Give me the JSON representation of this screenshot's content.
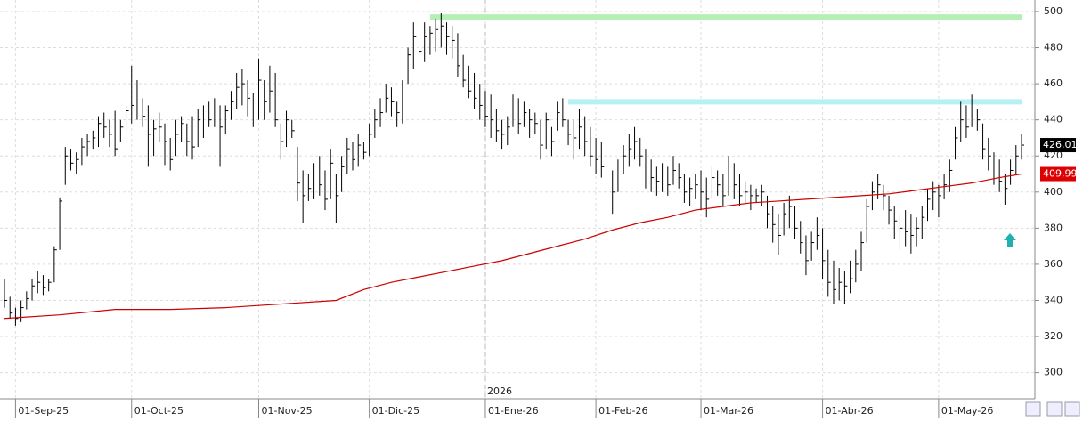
{
  "chart_data": {
    "type": "ohlc",
    "ylim": [
      286,
      506.4
    ],
    "yticks": [
      300,
      320,
      340,
      360,
      380,
      400,
      420,
      440,
      460,
      480,
      500
    ],
    "grid": true,
    "categories": [
      null,
      null,
      "01-Sep-25",
      null,
      null,
      null,
      null,
      null,
      null,
      null,
      null,
      null,
      null,
      null,
      null,
      null,
      null,
      null,
      null,
      null,
      null,
      null,
      null,
      "01-Oct-25",
      null,
      null,
      null,
      null,
      null,
      null,
      null,
      null,
      null,
      null,
      null,
      null,
      null,
      null,
      null,
      null,
      null,
      null,
      null,
      null,
      null,
      null,
      "01-Nov-25",
      null,
      null,
      null,
      null,
      null,
      null,
      null,
      null,
      null,
      null,
      null,
      null,
      null,
      null,
      null,
      null,
      null,
      null,
      null,
      "01-Dic-25",
      null,
      null,
      null,
      null,
      null,
      null,
      null,
      null,
      null,
      null,
      null,
      null,
      null,
      null,
      null,
      null,
      null,
      null,
      null,
      null,
      "01-Ene-26",
      null,
      null,
      null,
      null,
      null,
      null,
      null,
      null,
      null,
      null,
      null,
      null,
      null,
      null,
      null,
      null,
      null,
      null,
      null,
      "01-Feb-26",
      null,
      null,
      null,
      null,
      null,
      null,
      null,
      null,
      null,
      null,
      null,
      null,
      null,
      null,
      null,
      null,
      null,
      null,
      "01-Mar-26",
      null,
      null,
      null,
      null,
      null,
      null,
      null,
      null,
      null,
      null,
      null,
      null,
      null,
      null,
      null,
      null,
      null,
      null,
      null,
      null,
      null,
      "01-Abr-26",
      null,
      null,
      null,
      null,
      null,
      null,
      null,
      null,
      null,
      null,
      null,
      null,
      null,
      null,
      null,
      null,
      null,
      null,
      null,
      null,
      "01-May-26",
      null,
      null,
      null,
      null,
      null,
      null,
      null,
      null,
      null,
      null,
      null,
      null,
      null,
      null,
      null
    ],
    "year_divider": {
      "label": "2026",
      "at": 87
    },
    "bars": {
      "color": "#000000",
      "high": [
        352,
        342,
        336,
        340,
        345,
        352,
        356,
        354,
        352,
        370,
        397,
        425,
        424,
        422,
        430,
        432,
        434,
        442,
        444,
        440,
        445,
        440,
        448,
        470,
        462,
        452,
        448,
        440,
        444,
        438,
        430,
        440,
        442,
        438,
        442,
        446,
        448,
        450,
        452,
        448,
        448,
        456,
        466,
        468,
        462,
        455,
        474,
        462,
        470,
        466,
        438,
        445,
        440,
        425,
        412,
        410,
        416,
        420,
        412,
        424,
        410,
        420,
        430,
        428,
        432,
        428,
        438,
        446,
        452,
        460,
        458,
        450,
        462,
        480,
        494,
        488,
        494,
        492,
        496,
        499,
        494,
        492,
        488,
        476,
        470,
        466,
        460,
        456,
        454,
        446,
        440,
        442,
        454,
        452,
        450,
        446,
        444,
        440,
        444,
        436,
        450,
        452,
        440,
        440,
        446,
        442,
        436,
        430,
        428,
        425,
        412,
        418,
        426,
        432,
        436,
        430,
        424,
        418,
        414,
        416,
        414,
        420,
        416,
        410,
        408,
        410,
        412,
        408,
        414,
        412,
        410,
        420,
        416,
        410,
        406,
        404,
        402,
        404,
        398,
        392,
        388,
        394,
        398,
        392,
        384,
        376,
        378,
        386,
        380,
        368,
        362,
        358,
        356,
        362,
        368,
        378,
        396,
        406,
        410,
        404,
        398,
        392,
        388,
        390,
        388,
        386,
        392,
        402,
        406,
        404,
        410,
        418,
        436,
        450,
        448,
        454,
        446,
        438,
        430,
        422,
        418,
        410,
        418,
        426,
        432
      ],
      "low": [
        336,
        330,
        326,
        328,
        335,
        340,
        344,
        343,
        345,
        350,
        368,
        404,
        412,
        410,
        415,
        420,
        424,
        425,
        430,
        425,
        420,
        428,
        434,
        438,
        440,
        436,
        414,
        420,
        428,
        415,
        412,
        420,
        428,
        420,
        418,
        425,
        430,
        436,
        436,
        414,
        432,
        440,
        446,
        448,
        442,
        436,
        440,
        440,
        444,
        436,
        418,
        425,
        430,
        395,
        383,
        395,
        396,
        398,
        390,
        396,
        383,
        400,
        410,
        412,
        414,
        418,
        420,
        430,
        436,
        444,
        442,
        436,
        438,
        460,
        468,
        468,
        472,
        476,
        478,
        480,
        476,
        474,
        464,
        458,
        452,
        446,
        440,
        436,
        430,
        428,
        424,
        426,
        436,
        432,
        436,
        430,
        432,
        418,
        424,
        420,
        434,
        436,
        426,
        418,
        424,
        420,
        414,
        410,
        408,
        400,
        388,
        400,
        410,
        414,
        418,
        414,
        402,
        400,
        398,
        400,
        398,
        404,
        402,
        394,
        392,
        396,
        390,
        386,
        396,
        398,
        392,
        398,
        396,
        392,
        394,
        390,
        394,
        392,
        380,
        372,
        365,
        376,
        380,
        374,
        366,
        354,
        362,
        368,
        352,
        342,
        338,
        340,
        338,
        344,
        350,
        356,
        372,
        390,
        396,
        390,
        382,
        374,
        368,
        370,
        366,
        370,
        374,
        384,
        390,
        386,
        396,
        400,
        418,
        428,
        430,
        436,
        434,
        418,
        412,
        404,
        400,
        393,
        404,
        410,
        418
      ],
      "close": [
        340,
        333,
        330,
        336,
        341,
        348,
        350,
        347,
        350,
        368,
        395,
        420,
        416,
        418,
        425,
        428,
        430,
        438,
        436,
        432,
        424,
        436,
        445,
        448,
        446,
        442,
        432,
        435,
        436,
        428,
        418,
        432,
        438,
        428,
        425,
        440,
        446,
        440,
        446,
        436,
        445,
        450,
        458,
        460,
        452,
        446,
        462,
        450,
        456,
        440,
        428,
        440,
        434,
        405,
        398,
        402,
        410,
        404,
        396,
        416,
        398,
        414,
        424,
        418,
        426,
        422,
        432,
        440,
        444,
        452,
        450,
        444,
        446,
        476,
        486,
        478,
        486,
        488,
        490,
        492,
        486,
        484,
        470,
        462,
        456,
        452,
        448,
        442,
        440,
        434,
        432,
        436,
        446,
        438,
        444,
        440,
        438,
        426,
        440,
        428,
        444,
        440,
        432,
        430,
        436,
        428,
        420,
        418,
        414,
        410,
        400,
        410,
        420,
        424,
        428,
        420,
        410,
        408,
        406,
        410,
        404,
        412,
        408,
        400,
        402,
        404,
        400,
        396,
        408,
        404,
        398,
        410,
        404,
        398,
        400,
        398,
        398,
        400,
        388,
        382,
        376,
        388,
        392,
        380,
        372,
        362,
        372,
        376,
        362,
        350,
        346,
        350,
        348,
        352,
        360,
        372,
        392,
        400,
        404,
        398,
        390,
        384,
        380,
        378,
        376,
        380,
        386,
        396,
        400,
        398,
        404,
        412,
        430,
        440,
        436,
        446,
        440,
        424,
        420,
        410,
        406,
        402,
        412,
        420,
        426.01
      ]
    },
    "ma": {
      "color": "#cc0000",
      "x": [
        0,
        10,
        20,
        30,
        40,
        50,
        60,
        65,
        70,
        75,
        80,
        85,
        90,
        95,
        100,
        105,
        110,
        115,
        120,
        125,
        130,
        135,
        140,
        145,
        150,
        155,
        160,
        165,
        170,
        175,
        180,
        184
      ],
      "values": [
        330,
        332,
        335,
        335,
        336,
        338,
        340,
        346,
        350,
        353,
        356,
        359,
        362,
        366,
        370,
        374,
        379,
        383,
        386,
        390,
        392,
        394,
        395,
        396,
        397,
        398,
        399,
        401,
        403,
        405,
        408,
        409.99
      ]
    },
    "hlines": [
      {
        "value": 497,
        "color": "#b4f0b4",
        "from": 77
      },
      {
        "value": 450,
        "color": "#b4f0f4",
        "from": 102
      }
    ],
    "last_price": {
      "value": 426.01,
      "label": "426,01"
    },
    "ma_last": {
      "value": 409.99,
      "label": "409,99"
    }
  }
}
